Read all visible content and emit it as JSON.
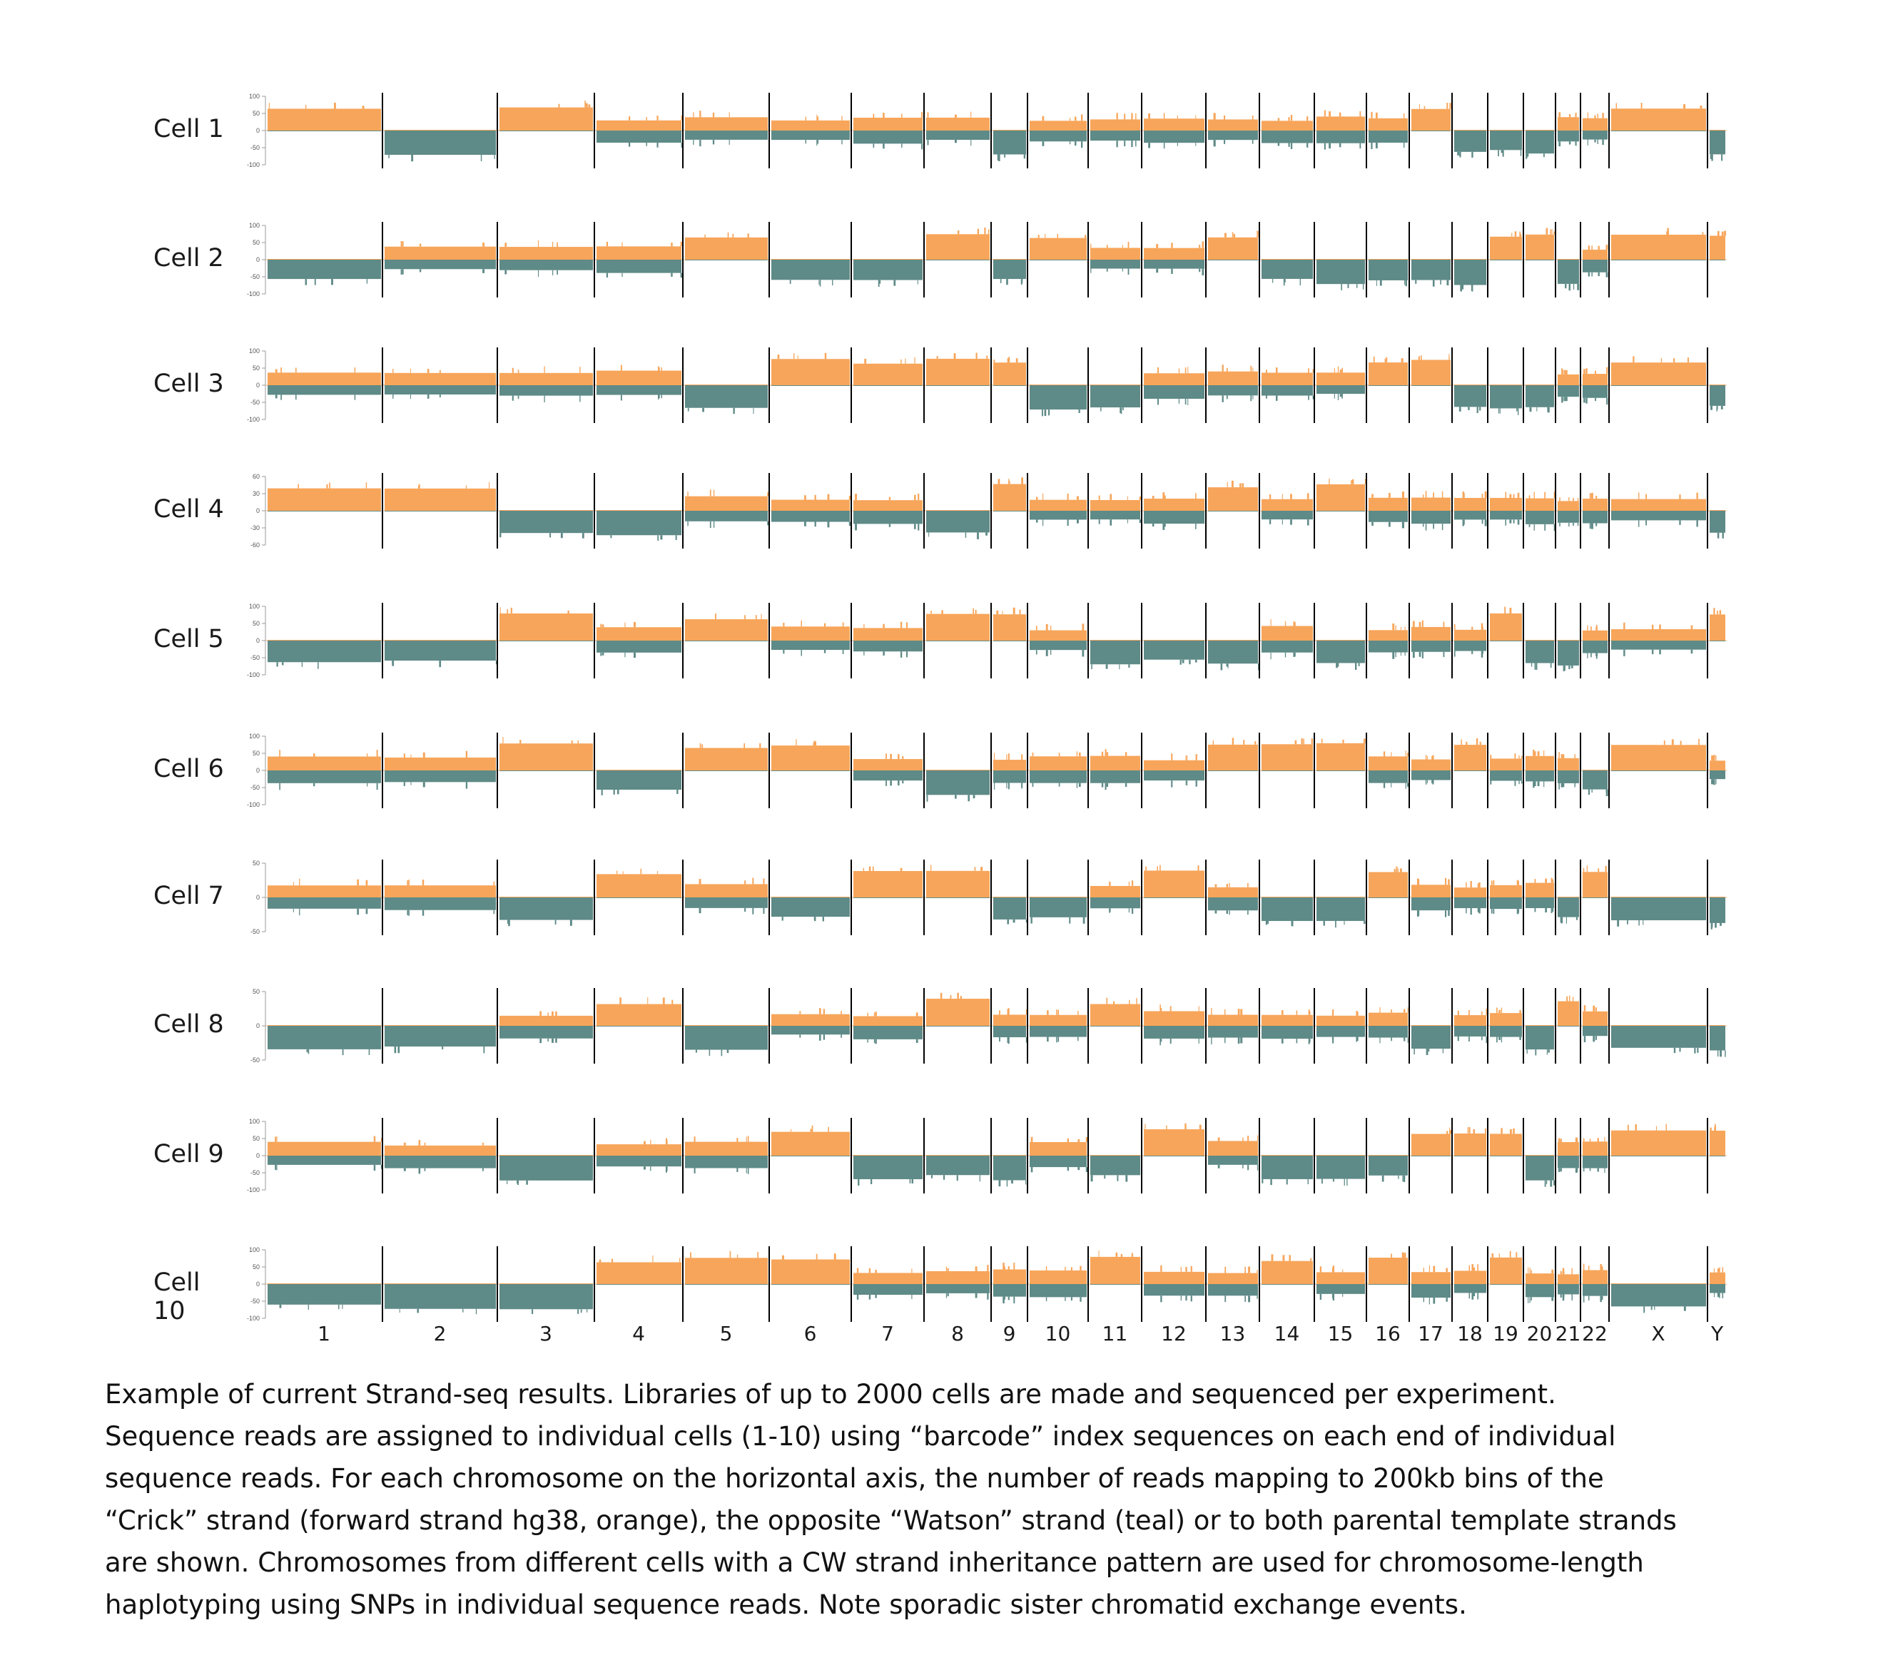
{
  "colors": {
    "crick": "#F7A55A",
    "watson": "#5E8A87",
    "divider": "#000000",
    "axis": "#9a9a9a"
  },
  "figure": {
    "cells": [
      {
        "label": "Cell 1",
        "ticks": [
          "100",
          "50",
          "0",
          "-50",
          "-100"
        ]
      },
      {
        "label": "Cell 2",
        "ticks": [
          "100",
          "50",
          "0",
          "-50",
          "-100"
        ]
      },
      {
        "label": "Cell 3",
        "ticks": [
          "100",
          "50",
          "0",
          "-50",
          "-100"
        ]
      },
      {
        "label": "Cell 4",
        "ticks": [
          "60",
          "30",
          "0",
          "-30",
          "-60"
        ]
      },
      {
        "label": "Cell 5",
        "ticks": [
          "100",
          "50",
          "0",
          "-50",
          "-100"
        ]
      },
      {
        "label": "Cell 6",
        "ticks": [
          "100",
          "50",
          "0",
          "-50",
          "-100"
        ]
      },
      {
        "label": "Cell 7",
        "ticks": [
          "50",
          "0",
          "-50"
        ]
      },
      {
        "label": "Cell 8",
        "ticks": [
          "50",
          "0",
          "-50"
        ]
      },
      {
        "label": "Cell 9",
        "ticks": [
          "100",
          "50",
          "0",
          "-50",
          "-100"
        ]
      },
      {
        "label": "Cell 10",
        "ticks": [
          "100",
          "50",
          "0",
          "-50",
          "-100"
        ]
      }
    ],
    "chromosomes": [
      "1",
      "2",
      "3",
      "4",
      "5",
      "6",
      "7",
      "8",
      "9",
      "10",
      "11",
      "12",
      "13",
      "14",
      "15",
      "16",
      "17",
      "18",
      "19",
      "20",
      "21",
      "22",
      "X",
      "Y"
    ]
  },
  "chart_data": {
    "type": "bar",
    "description_series": [
      {
        "name": "Crick",
        "color": "#F7A55A"
      },
      {
        "name": "Watson",
        "color": "#5E8A87"
      }
    ],
    "categories": [
      "1",
      "2",
      "3",
      "4",
      "5",
      "6",
      "7",
      "8",
      "9",
      "10",
      "11",
      "12",
      "13",
      "14",
      "15",
      "16",
      "17",
      "18",
      "19",
      "20",
      "21",
      "22",
      "X",
      "Y"
    ],
    "pattern_codes": "C = Crick only, W = Watson only, M = both (Crick + Watson)",
    "cells": [
      {
        "cell": "Cell 1",
        "patterns": [
          "C",
          "W",
          "C",
          "M",
          "M",
          "M",
          "M",
          "M",
          "W",
          "M",
          "M",
          "M",
          "M",
          "M",
          "M",
          "M",
          "C",
          "W",
          "W",
          "W",
          "M",
          "M",
          "C",
          "W"
        ]
      },
      {
        "cell": "Cell 2",
        "patterns": [
          "W",
          "M",
          "M",
          "M",
          "C",
          "W",
          "W",
          "C",
          "W",
          "C",
          "M",
          "M",
          "C",
          "W",
          "W",
          "W",
          "W",
          "W",
          "C",
          "C",
          "W",
          "M",
          "C",
          "C"
        ]
      },
      {
        "cell": "Cell 3",
        "patterns": [
          "M",
          "M",
          "M",
          "M",
          "W",
          "C",
          "C",
          "C",
          "C",
          "W",
          "W",
          "M",
          "M",
          "M",
          "M",
          "C",
          "C",
          "W",
          "W",
          "W",
          "M",
          "M",
          "C",
          "W"
        ]
      },
      {
        "cell": "Cell 4",
        "patterns": [
          "C",
          "C",
          "W",
          "W",
          "M",
          "M",
          "M",
          "W",
          "C",
          "M",
          "M",
          "M",
          "C",
          "M",
          "C",
          "M",
          "M",
          "M",
          "M",
          "M",
          "M",
          "M",
          "M",
          "W"
        ]
      },
      {
        "cell": "Cell 5",
        "patterns": [
          "W",
          "W",
          "C",
          "M",
          "C",
          "M",
          "M",
          "C",
          "C",
          "M",
          "W",
          "W",
          "W",
          "M",
          "W",
          "M",
          "M",
          "M",
          "C",
          "W",
          "W",
          "M",
          "M",
          "C"
        ]
      },
      {
        "cell": "Cell 6",
        "patterns": [
          "M",
          "M",
          "C",
          "W",
          "C",
          "C",
          "M",
          "W",
          "M",
          "M",
          "M",
          "M",
          "C",
          "C",
          "C",
          "M",
          "M",
          "C",
          "M",
          "M",
          "M",
          "W",
          "C",
          "M"
        ]
      },
      {
        "cell": "Cell 7",
        "patterns": [
          "M",
          "M",
          "W",
          "C",
          "M",
          "W",
          "C",
          "C",
          "W",
          "W",
          "M",
          "C",
          "M",
          "W",
          "W",
          "C",
          "M",
          "M",
          "M",
          "M",
          "W",
          "C",
          "W",
          "W"
        ]
      },
      {
        "cell": "Cell 8",
        "patterns": [
          "W",
          "W",
          "M",
          "C",
          "W",
          "M",
          "M",
          "C",
          "M",
          "M",
          "C",
          "M",
          "M",
          "M",
          "M",
          "M",
          "W",
          "M",
          "M",
          "W",
          "C",
          "M",
          "W",
          "W"
        ]
      },
      {
        "cell": "Cell 9",
        "patterns": [
          "M",
          "M",
          "W",
          "M",
          "M",
          "C",
          "W",
          "W",
          "W",
          "M",
          "W",
          "C",
          "M",
          "W",
          "W",
          "W",
          "C",
          "C",
          "C",
          "W",
          "M",
          "M",
          "C",
          "C"
        ]
      },
      {
        "cell": "Cell 10",
        "patterns": [
          "W",
          "W",
          "W",
          "C",
          "C",
          "C",
          "M",
          "M",
          "M",
          "M",
          "C",
          "M",
          "M",
          "C",
          "M",
          "C",
          "M",
          "M",
          "C",
          "M",
          "M",
          "M",
          "W",
          "M"
        ]
      }
    ],
    "grid": false,
    "legend": "none"
  },
  "caption": {
    "lines": [
      "Example of current Strand-seq results. Libraries of up to 2000 cells are made and sequenced per experiment.",
      "Sequence reads are assigned to individual cells (1-10) using “barcode” index sequences on each end of individual",
      "sequence reads. For each chromosome on the horizontal axis, the number of  reads mapping to 200kb bins of the",
      "“Crick” strand (forward strand hg38, orange), the opposite “Watson” strand (teal) or to both parental template strands",
      "are shown. Chromosomes from different cells with a CW strand inheritance pattern are used for chromosome-length",
      "haplotyping using SNPs in individual sequence reads. Note sporadic sister chromatid exchange events."
    ]
  }
}
